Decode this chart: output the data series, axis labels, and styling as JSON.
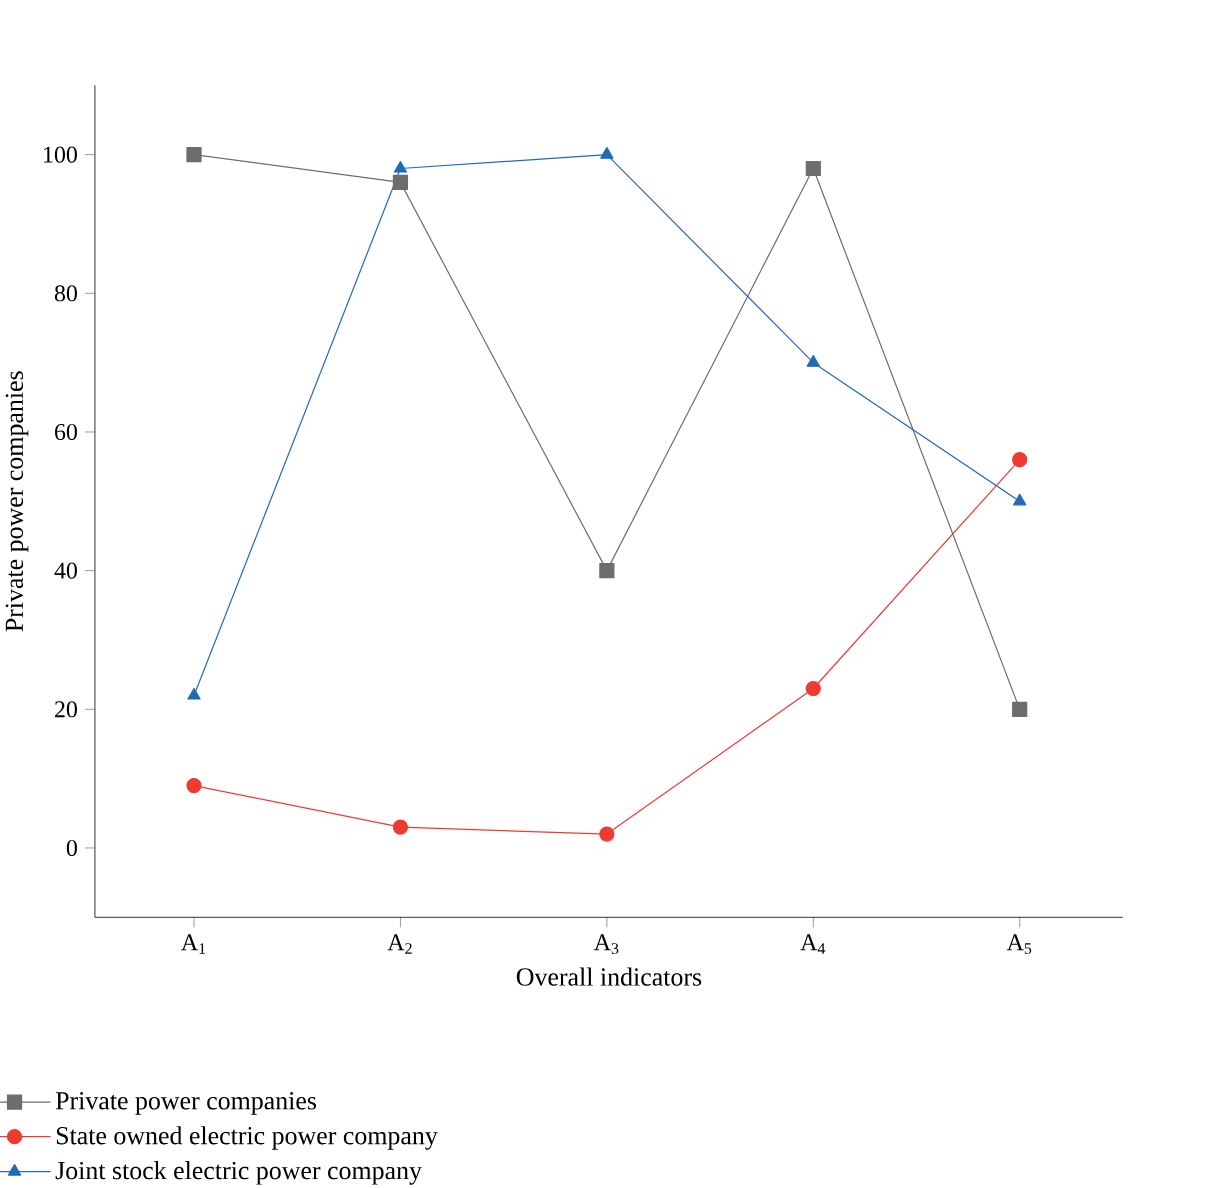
{
  "chart_data": {
    "type": "line",
    "xlabel": "Overall indicators",
    "ylabel": "Private power companies",
    "categories": [
      "A$_{1}$",
      "A$_{2}$",
      "A$_{3}$",
      "A$_{4}$",
      "A$_{5}$"
    ],
    "ylim": [
      -10,
      110
    ],
    "yticks": [
      0,
      20,
      40,
      60,
      80,
      100
    ],
    "legend": "bottom",
    "grid": false,
    "series": [
      {
        "name": "Private power companies",
        "color": "#6d6d6d",
        "marker": "square",
        "values": [
          100,
          96,
          40,
          98,
          20
        ]
      },
      {
        "name": "State owned electric power company",
        "color": "#ee3b32",
        "marker": "circle",
        "values": [
          9,
          3,
          2,
          23,
          56
        ]
      },
      {
        "name": "Joint stock electric power company",
        "color": "#1f6bb5",
        "marker": "triangle",
        "values": [
          22,
          98,
          100,
          70,
          50
        ]
      }
    ]
  }
}
